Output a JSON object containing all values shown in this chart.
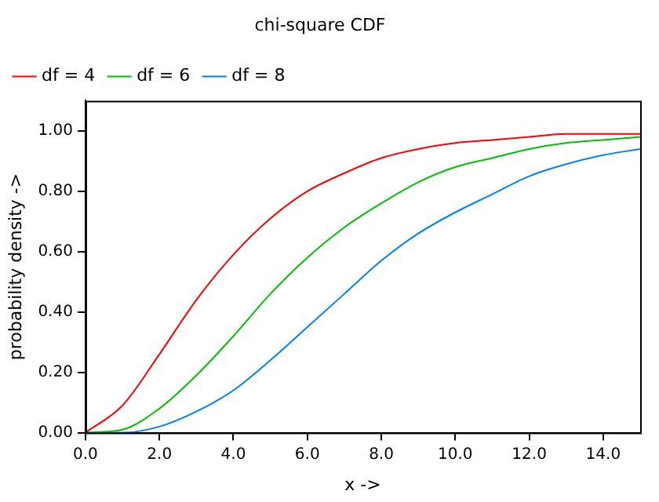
{
  "chart_data": {
    "type": "line",
    "title": "chi-square CDF",
    "xlabel": "x ->",
    "ylabel": "probability density ->",
    "x": [
      0,
      1,
      2,
      3,
      4,
      5,
      6,
      7,
      8,
      9,
      10,
      11,
      12,
      13,
      14,
      15
    ],
    "series": [
      {
        "name": "df = 4",
        "color": "#ff0000",
        "values": [
          0,
          0.09,
          0.26,
          0.44,
          0.59,
          0.71,
          0.8,
          0.86,
          0.91,
          0.94,
          0.96,
          0.97,
          0.98,
          0.99,
          0.99,
          0.99
        ]
      },
      {
        "name": "df = 6",
        "color": "#00c000",
        "values": [
          0,
          0.01,
          0.08,
          0.19,
          0.32,
          0.46,
          0.58,
          0.68,
          0.76,
          0.83,
          0.88,
          0.91,
          0.94,
          0.96,
          0.97,
          0.98
        ]
      },
      {
        "name": "df = 8",
        "color": "#0080ff",
        "values": [
          0,
          0,
          0.02,
          0.07,
          0.14,
          0.24,
          0.35,
          0.46,
          0.57,
          0.66,
          0.73,
          0.79,
          0.85,
          0.89,
          0.92,
          0.94
        ]
      }
    ],
    "xlim": [
      0,
      15
    ],
    "ylim": [
      0,
      1.1
    ],
    "xticks": [
      {
        "value": 0,
        "label": "0.0"
      },
      {
        "value": 2,
        "label": "2.0"
      },
      {
        "value": 4,
        "label": "4.0"
      },
      {
        "value": 6,
        "label": "6.0"
      },
      {
        "value": 8,
        "label": "8.0"
      },
      {
        "value": 10,
        "label": "10.0"
      },
      {
        "value": 12,
        "label": "12.0"
      },
      {
        "value": 14,
        "label": "14.0"
      }
    ],
    "yticks": [
      {
        "value": 0,
        "label": "0.00"
      },
      {
        "value": 0.2,
        "label": "0.20"
      },
      {
        "value": 0.4,
        "label": "0.40"
      },
      {
        "value": 0.6,
        "label": "0.60"
      },
      {
        "value": 0.8,
        "label": "0.80"
      },
      {
        "value": 1,
        "label": "1.00"
      }
    ],
    "grid": false,
    "legend": "top left",
    "marker": "none",
    "line_style": "solid"
  }
}
